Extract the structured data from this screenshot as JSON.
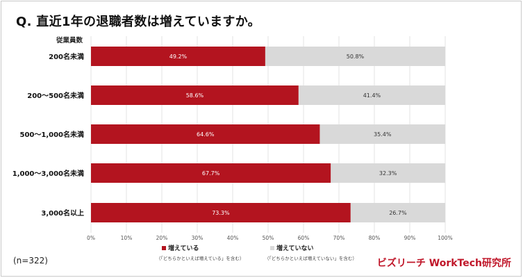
{
  "title": "Q. 直近1年の退職者数は増えていますか。",
  "category_header": "従業員数",
  "note": "(n=322)",
  "brand": "ビズリーチ WorkTech研究所",
  "colors": {
    "increase": "#b3141f",
    "not_increase": "#d9d9d9"
  },
  "chart_data": {
    "type": "bar",
    "orientation": "horizontal",
    "stacked": "percent",
    "title": "Q. 直近1年の退職者数は増えていますか。",
    "categories": [
      "200名未満",
      "200〜500名未満",
      "500〜1,000名未満",
      "1,000〜3,000名未満",
      "3,000名以上"
    ],
    "series": [
      {
        "name": "増えている",
        "note": "（「どちらかといえば増えている」を含む）",
        "values": [
          49.2,
          58.6,
          64.6,
          67.7,
          73.3
        ],
        "labels": [
          "49.2%",
          "58.6%",
          "64.6%",
          "67.7%",
          "73.3%"
        ]
      },
      {
        "name": "増えていない",
        "note": "（「どちらかといえば増えていない」を含む）",
        "values": [
          50.8,
          41.4,
          35.4,
          32.3,
          26.7
        ],
        "labels": [
          "50.8%",
          "41.4%",
          "35.4%",
          "32.3%",
          "26.7%"
        ]
      }
    ],
    "xlim": [
      0,
      100
    ],
    "xticks": [
      "0%",
      "10%",
      "20%",
      "30%",
      "40%",
      "50%",
      "60%",
      "70%",
      "80%",
      "90%",
      "100%"
    ],
    "grid": true,
    "legend": "bottom"
  }
}
